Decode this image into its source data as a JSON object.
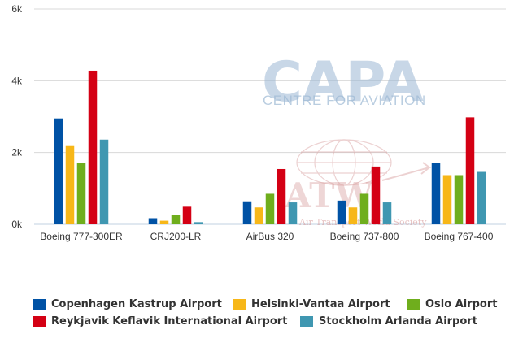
{
  "chart_data": {
    "type": "bar",
    "categories": [
      "Boeing 777-300ER",
      "CRJ200-LR",
      "AirBus 320",
      "Boeing 737-800",
      "Boeing 767-400"
    ],
    "y_ticks": [
      "0k",
      "2k",
      "4k",
      "6k"
    ],
    "ylim": [
      0,
      6000
    ],
    "grid": true,
    "legend_position": "bottom",
    "series": [
      {
        "name": "Copenhagen Kastrup Airport",
        "color": "#0052a5",
        "values": [
          2950,
          170,
          640,
          660,
          1710
        ]
      },
      {
        "name": "Helsinki-Vantaa Airport",
        "color": "#f7b718",
        "values": [
          2180,
          100,
          470,
          470,
          1370
        ]
      },
      {
        "name": "Oslo Airport",
        "color": "#6fae1d",
        "values": [
          1710,
          250,
          850,
          850,
          1370
        ]
      },
      {
        "name": "Reykjavik Keflavik International Airport",
        "color": "#d40014",
        "values": [
          4280,
          490,
          1540,
          1610,
          2980
        ]
      },
      {
        "name": "Stockholm Arlanda Airport",
        "color": "#3f97b1",
        "values": [
          2360,
          60,
          610,
          610,
          1460
        ]
      }
    ]
  },
  "watermark": {
    "capa_logo": "CAPA",
    "capa_subtitle": "CENTRE FOR AVIATION",
    "atw_logo": "ATW",
    "atw_subtitle": "Air Transport World Society"
  }
}
